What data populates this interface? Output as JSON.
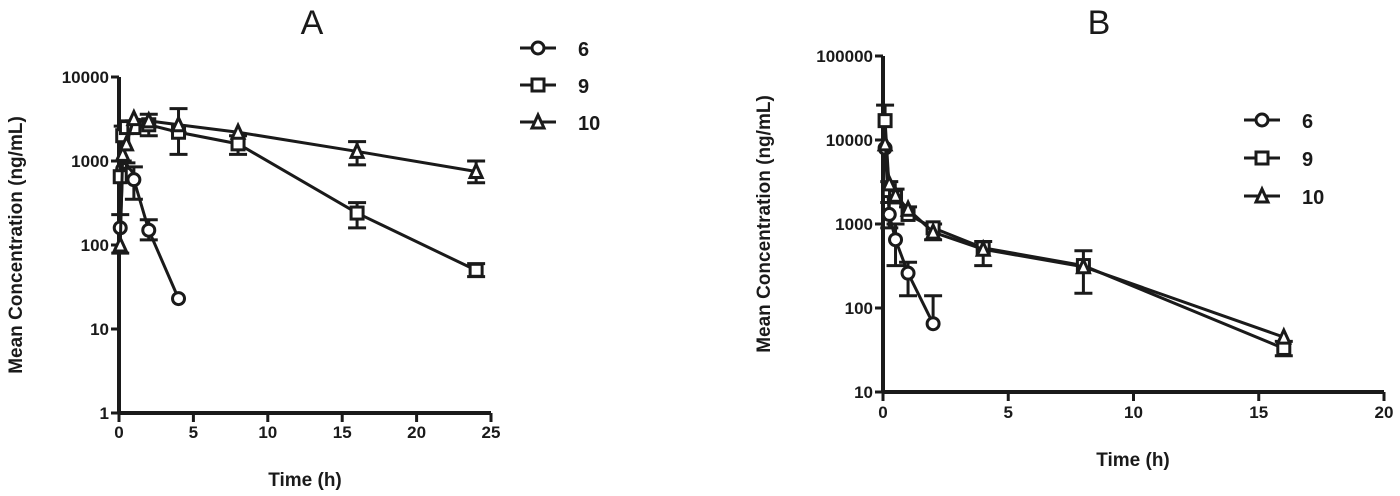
{
  "figure": {
    "panels": [
      "A",
      "B"
    ]
  },
  "chart_data": [
    {
      "panel": "A",
      "type": "line",
      "title": "A",
      "xlabel": "Time (h)",
      "ylabel": "Mean Concentration (ng/mL)",
      "yscale": "log",
      "xlim": [
        0,
        25
      ],
      "ylim": [
        1,
        10000
      ],
      "xticks": [
        0,
        5,
        10,
        15,
        20,
        25
      ],
      "yticks": [
        1,
        10,
        100,
        1000,
        10000
      ],
      "ytick_labels": [
        "1",
        "10",
        "100",
        "1000",
        "10000"
      ],
      "legend_position": "upper right",
      "grid": false,
      "series": [
        {
          "name": "6",
          "marker": "circle",
          "x": [
            0.083,
            0.25,
            0.5,
            1,
            2,
            4
          ],
          "y": [
            160,
            800,
            700,
            600,
            150,
            23
          ],
          "err_upper": [
            230,
            1000,
            950,
            850,
            200,
            null
          ],
          "err_lower": [
            null,
            null,
            null,
            350,
            115,
            null
          ]
        },
        {
          "name": "9",
          "marker": "square",
          "x": [
            0.083,
            0.25,
            0.5,
            1,
            2,
            4,
            8,
            16,
            24
          ],
          "y": [
            650,
            2000,
            2500,
            2500,
            2700,
            2200,
            1600,
            240,
            50
          ],
          "err_upper": [
            1000,
            2600,
            3000,
            3000,
            3600,
            4200,
            2000,
            320,
            60
          ],
          "err_lower": [
            null,
            null,
            null,
            null,
            2000,
            1200,
            1200,
            160,
            42
          ]
        },
        {
          "name": "10",
          "marker": "triangle",
          "x": [
            0.083,
            0.25,
            0.5,
            1,
            2,
            4,
            8,
            16,
            24
          ],
          "y": [
            100,
            1200,
            1600,
            3200,
            3000,
            2700,
            2200,
            1300,
            750
          ],
          "err_upper": [
            null,
            null,
            null,
            null,
            null,
            null,
            null,
            1700,
            1000
          ],
          "err_lower": [
            80,
            null,
            null,
            null,
            null,
            null,
            null,
            900,
            550
          ]
        }
      ]
    },
    {
      "panel": "B",
      "type": "line",
      "title": "B",
      "xlabel": "Time (h)",
      "ylabel": "Mean Concentration (ng/mL)",
      "yscale": "log",
      "xlim": [
        0,
        20
      ],
      "ylim": [
        10,
        100000
      ],
      "xticks": [
        0,
        5,
        10,
        15,
        20
      ],
      "yticks": [
        10,
        100,
        1000,
        10000,
        100000
      ],
      "ytick_labels": [
        "10",
        "100",
        "1000",
        "10000",
        "100000"
      ],
      "legend_position": "upper right",
      "grid": false,
      "series": [
        {
          "name": "6",
          "marker": "circle",
          "x": [
            0.083,
            0.25,
            0.5,
            1,
            2
          ],
          "y": [
            8000,
            1300,
            650,
            260,
            65
          ],
          "err_upper": [
            null,
            1800,
            1000,
            350,
            140
          ],
          "err_lower": [
            null,
            900,
            320,
            140,
            null
          ]
        },
        {
          "name": "9",
          "marker": "square",
          "x": [
            0.083,
            0.25,
            0.5,
            1,
            2,
            4,
            8,
            16
          ],
          "y": [
            17000,
            2500,
            2100,
            1300,
            900,
            520,
            320,
            33
          ],
          "err_upper": [
            26000,
            3200,
            2600,
            1600,
            1000,
            620,
            480,
            40
          ],
          "err_lower": [
            null,
            null,
            null,
            null,
            650,
            320,
            150,
            27
          ]
        },
        {
          "name": "10",
          "marker": "triangle",
          "x": [
            0.083,
            0.25,
            0.5,
            1,
            2,
            4,
            8,
            16
          ],
          "y": [
            9000,
            3000,
            2200,
            1500,
            800,
            500,
            310,
            45
          ],
          "err_upper": [
            null,
            null,
            null,
            null,
            null,
            null,
            null,
            null
          ],
          "err_lower": [
            null,
            null,
            null,
            null,
            null,
            null,
            null,
            null
          ]
        }
      ]
    }
  ],
  "colors": {
    "ink": "#1a1a1a",
    "background": "#ffffff"
  }
}
